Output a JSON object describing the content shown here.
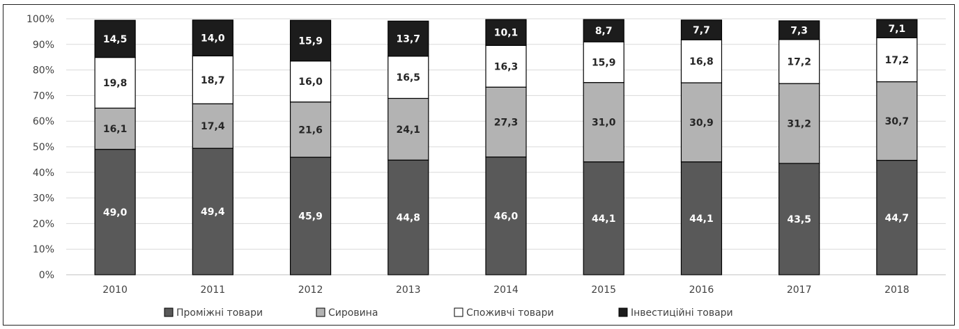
{
  "chart_data": {
    "type": "bar",
    "stacked": true,
    "percent": true,
    "categories": [
      "2010",
      "2011",
      "2012",
      "2013",
      "2014",
      "2015",
      "2016",
      "2017",
      "2018"
    ],
    "series": [
      {
        "name": "Проміжні товари",
        "color": "#595959",
        "label_color": "#ffffff",
        "values": [
          49.0,
          49.4,
          45.9,
          44.8,
          46.0,
          44.1,
          44.1,
          43.5,
          44.7
        ],
        "labels": [
          "49,0",
          "49,4",
          "45,9",
          "44,8",
          "46,0",
          "44,1",
          "44,1",
          "43,5",
          "44,7"
        ]
      },
      {
        "name": "Сировина",
        "color": "#b3b3b3",
        "label_color": "#262626",
        "values": [
          16.1,
          17.4,
          21.6,
          24.1,
          27.3,
          31.0,
          30.9,
          31.2,
          30.7
        ],
        "labels": [
          "16,1",
          "17,4",
          "21,6",
          "24,1",
          "27,3",
          "31,0",
          "30,9",
          "31,2",
          "30,7"
        ]
      },
      {
        "name": "Споживчі товари",
        "color": "#ffffff",
        "label_color": "#262626",
        "values": [
          19.8,
          18.7,
          16.0,
          16.5,
          16.3,
          15.9,
          16.8,
          17.2,
          17.2
        ],
        "labels": [
          "19,8",
          "18,7",
          "16,0",
          "16,5",
          "16,3",
          "15,9",
          "16,8",
          "17,2",
          "17,2"
        ]
      },
      {
        "name": "Інвестиційні товари",
        "color": "#1c1c1c",
        "label_color": "#ffffff",
        "values": [
          14.5,
          14.0,
          15.9,
          13.7,
          10.1,
          8.7,
          7.7,
          7.3,
          7.1
        ],
        "labels": [
          "14,5",
          "14,0",
          "15,9",
          "13,7",
          "10,1",
          "8,7",
          "7,7",
          "7,3",
          "7,1"
        ]
      }
    ],
    "y_ticks": [
      "0%",
      "10%",
      "20%",
      "30%",
      "40%",
      "50%",
      "60%",
      "70%",
      "80%",
      "90%",
      "100%"
    ],
    "ylim": [
      0,
      100
    ],
    "grid": true,
    "legend_position": "bottom"
  }
}
